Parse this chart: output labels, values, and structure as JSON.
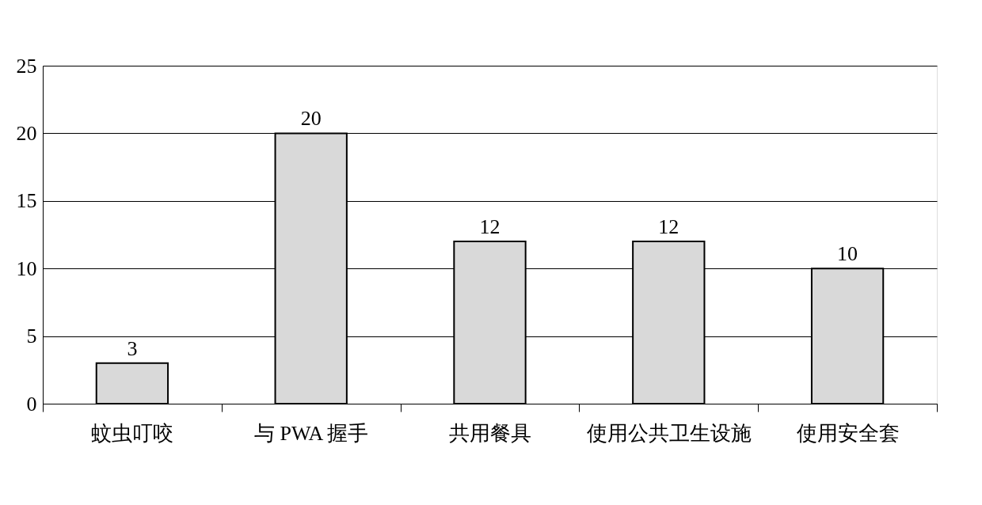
{
  "chart_data": {
    "type": "bar",
    "categories": [
      "蚊虫叮咬",
      "与 PWA 握手",
      "共用餐具",
      "使用公共卫生设施",
      "使用安全套"
    ],
    "values": [
      3,
      20,
      12,
      12,
      10
    ],
    "color": "#d9d9d9",
    "ylim": [
      0,
      25
    ],
    "yticks": [
      0,
      5,
      10,
      15,
      20,
      25
    ],
    "grid": "y",
    "data_labels": true
  }
}
